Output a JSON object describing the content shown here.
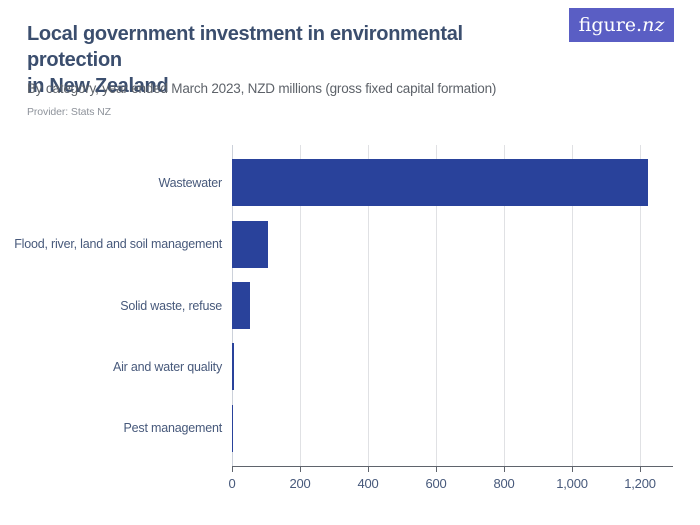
{
  "header": {
    "title_line1": "Local government investment in environmental protection",
    "title_line2": "in New Zealand",
    "subtitle": "By category, year ended March 2023, NZD millions (gross fixed capital formation)",
    "provider": "Provider: Stats NZ"
  },
  "logo": {
    "brand_regular": "figure.",
    "brand_italic": "nz",
    "bg_color": "#5a5ec4",
    "text_color": "#ffffff"
  },
  "chart_data": {
    "type": "bar",
    "orientation": "horizontal",
    "title": "Local government investment in environmental protection in New Zealand",
    "subtitle": "By category, year ended March 2023, NZD millions (gross fixed capital formation)",
    "categories": [
      "Wastewater",
      "Flood, river, land and soil management",
      "Solid waste, refuse",
      "Air and water quality",
      "Pest management"
    ],
    "values": [
      1224,
      106,
      53,
      6,
      1
    ],
    "xlabel": "",
    "ylabel": "",
    "xlim": [
      0,
      1295
    ],
    "xticks": [
      0,
      200,
      400,
      600,
      800,
      1000,
      1200
    ],
    "xtick_labels": [
      "0",
      "200",
      "400",
      "600",
      "800",
      "1,000",
      "1,200"
    ],
    "grid": true,
    "legend": "none",
    "bar_color": "#29429b",
    "gridline_color": "#e0e1e4",
    "axis_color": "#5f646c",
    "label_color": "#47597b"
  }
}
